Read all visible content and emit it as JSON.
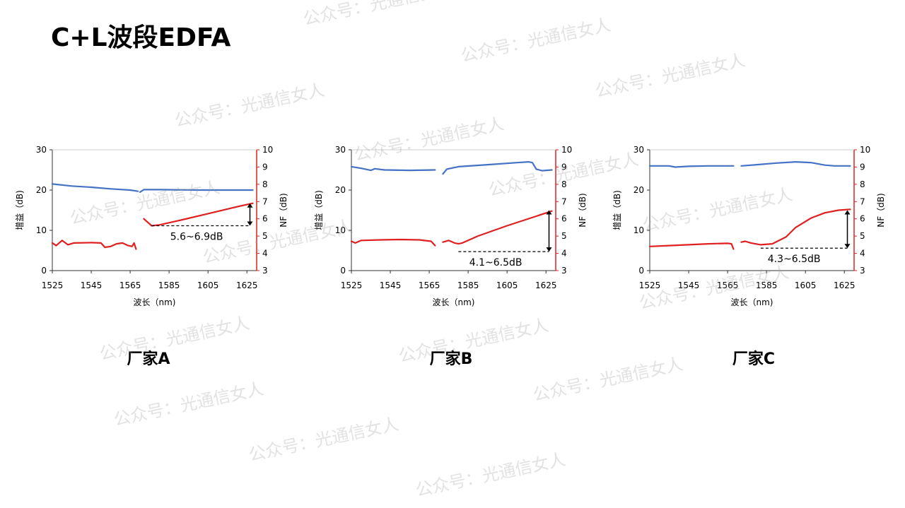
{
  "page_title": "C+L波段EDFA",
  "watermark_text": "公众号：光通信女人",
  "chart_data": [
    {
      "type": "line",
      "caption": "厂家A",
      "xlabel": "波长（nm)",
      "ylabel_left": "增益（dB)",
      "ylabel_right": "NF（dB)",
      "xlim": [
        1525,
        1630
      ],
      "ylim_left": [
        0,
        30
      ],
      "ylim_right": [
        3,
        10
      ],
      "x_ticks": [
        "1525",
        "1545",
        "1565",
        "1585",
        "1605",
        "1625"
      ],
      "y_left_ticks": [
        "0",
        "10",
        "20",
        "30"
      ],
      "y_right_ticks": [
        "3",
        "4",
        "5",
        "6",
        "7",
        "8",
        "9",
        "10"
      ],
      "annotation": "5.6~6.9dB",
      "annotation_range": [
        5.6,
        6.9
      ],
      "series": [
        {
          "axis": "left",
          "color": "#4472C4",
          "segment": "C",
          "points": [
            [
              1525,
              21.5
            ],
            [
              1535,
              21.0
            ],
            [
              1545,
              20.7
            ],
            [
              1555,
              20.3
            ],
            [
              1565,
              20.0
            ],
            [
              1569,
              19.7
            ]
          ]
        },
        {
          "axis": "left",
          "color": "#4472C4",
          "segment": "L",
          "points": [
            [
              1570,
              19.5
            ],
            [
              1572,
              20.1
            ],
            [
              1580,
              20.1
            ],
            [
              1600,
              20.0
            ],
            [
              1628,
              20.0
            ]
          ]
        },
        {
          "axis": "right",
          "color": "#E02020",
          "segment": "C",
          "points": [
            [
              1525,
              4.6
            ],
            [
              1527,
              4.45
            ],
            [
              1530,
              4.75
            ],
            [
              1533,
              4.5
            ],
            [
              1536,
              4.6
            ],
            [
              1545,
              4.62
            ],
            [
              1550,
              4.6
            ],
            [
              1552,
              4.35
            ],
            [
              1555,
              4.4
            ],
            [
              1558,
              4.55
            ],
            [
              1561,
              4.6
            ],
            [
              1564,
              4.45
            ],
            [
              1566,
              4.4
            ],
            [
              1567,
              4.6
            ],
            [
              1568,
              4.25
            ]
          ]
        },
        {
          "axis": "right",
          "color": "#E02020",
          "segment": "L",
          "points": [
            [
              1572,
              6.0
            ],
            [
              1574,
              5.8
            ],
            [
              1576,
              5.6
            ],
            [
              1580,
              5.65
            ],
            [
              1590,
              5.9
            ],
            [
              1605,
              6.3
            ],
            [
              1620,
              6.7
            ],
            [
              1628,
              6.9
            ]
          ]
        }
      ]
    },
    {
      "type": "line",
      "caption": "厂家B",
      "xlabel": "波长（nm)",
      "ylabel_left": "增益（dB)",
      "ylabel_right": "NF（dB)",
      "xlim": [
        1525,
        1630
      ],
      "ylim_left": [
        0,
        30
      ],
      "ylim_right": [
        3,
        10
      ],
      "x_ticks": [
        "1525",
        "1545",
        "1565",
        "1585",
        "1605",
        "1625"
      ],
      "y_left_ticks": [
        "0",
        "10",
        "20",
        "30"
      ],
      "y_right_ticks": [
        "3",
        "4",
        "5",
        "6",
        "7",
        "8",
        "9",
        "10"
      ],
      "annotation": "4.1~6.5dB",
      "annotation_range": [
        4.1,
        6.5
      ],
      "series": [
        {
          "axis": "left",
          "color": "#4472C4",
          "segment": "C",
          "points": [
            [
              1525,
              25.8
            ],
            [
              1530,
              25.4
            ],
            [
              1535,
              24.9
            ],
            [
              1537,
              25.3
            ],
            [
              1542,
              25.0
            ],
            [
              1555,
              24.9
            ],
            [
              1568,
              25.0
            ]
          ]
        },
        {
          "axis": "left",
          "color": "#4472C4",
          "segment": "L",
          "points": [
            [
              1572,
              24.0
            ],
            [
              1574,
              25.2
            ],
            [
              1580,
              25.8
            ],
            [
              1595,
              26.3
            ],
            [
              1610,
              26.8
            ],
            [
              1616,
              27.0
            ],
            [
              1618,
              26.8
            ],
            [
              1620,
              25.2
            ],
            [
              1623,
              24.8
            ],
            [
              1628,
              25.0
            ]
          ]
        },
        {
          "axis": "right",
          "color": "#E02020",
          "segment": "C",
          "points": [
            [
              1525,
              4.7
            ],
            [
              1527,
              4.6
            ],
            [
              1530,
              4.75
            ],
            [
              1540,
              4.78
            ],
            [
              1550,
              4.8
            ],
            [
              1560,
              4.78
            ],
            [
              1566,
              4.7
            ],
            [
              1568,
              4.45
            ]
          ]
        },
        {
          "axis": "right",
          "color": "#E02020",
          "segment": "L",
          "points": [
            [
              1572,
              4.65
            ],
            [
              1575,
              4.75
            ],
            [
              1578,
              4.6
            ],
            [
              1580,
              4.55
            ],
            [
              1582,
              4.6
            ],
            [
              1590,
              5.0
            ],
            [
              1605,
              5.6
            ],
            [
              1620,
              6.15
            ],
            [
              1628,
              6.45
            ]
          ]
        }
      ]
    },
    {
      "type": "line",
      "caption": "厂家C",
      "xlabel": "波长（nm)",
      "ylabel_left": "增益（dB)",
      "ylabel_right": "NF（dB)",
      "xlim": [
        1525,
        1630
      ],
      "ylim_left": [
        0,
        30
      ],
      "ylim_right": [
        3,
        10
      ],
      "x_ticks": [
        "1525",
        "1545",
        "1565",
        "1585",
        "1605",
        "1625"
      ],
      "y_left_ticks": [
        "0",
        "10",
        "20",
        "30"
      ],
      "y_right_ticks": [
        "3",
        "4",
        "5",
        "6",
        "7",
        "8",
        "9",
        "10"
      ],
      "annotation": "4.3~6.5dB",
      "annotation_range": [
        4.3,
        6.5
      ],
      "series": [
        {
          "axis": "left",
          "color": "#4472C4",
          "segment": "C",
          "points": [
            [
              1525,
              26.0
            ],
            [
              1535,
              26.0
            ],
            [
              1538,
              25.7
            ],
            [
              1545,
              25.9
            ],
            [
              1555,
              26.0
            ],
            [
              1568,
              26.0
            ]
          ]
        },
        {
          "axis": "left",
          "color": "#4472C4",
          "segment": "L",
          "points": [
            [
              1572,
              26.0
            ],
            [
              1580,
              26.3
            ],
            [
              1590,
              26.7
            ],
            [
              1600,
              27.0
            ],
            [
              1608,
              26.8
            ],
            [
              1615,
              26.2
            ],
            [
              1620,
              26.0
            ],
            [
              1628,
              26.0
            ]
          ]
        },
        {
          "axis": "right",
          "color": "#E02020",
          "segment": "C",
          "points": [
            [
              1525,
              4.4
            ],
            [
              1535,
              4.45
            ],
            [
              1545,
              4.5
            ],
            [
              1555,
              4.55
            ],
            [
              1565,
              4.58
            ],
            [
              1567,
              4.55
            ],
            [
              1568,
              4.25
            ]
          ]
        },
        {
          "axis": "right",
          "color": "#E02020",
          "segment": "L",
          "points": [
            [
              1572,
              4.65
            ],
            [
              1574,
              4.7
            ],
            [
              1577,
              4.6
            ],
            [
              1582,
              4.5
            ],
            [
              1588,
              4.55
            ],
            [
              1595,
              4.95
            ],
            [
              1600,
              5.5
            ],
            [
              1608,
              6.05
            ],
            [
              1615,
              6.35
            ],
            [
              1622,
              6.5
            ],
            [
              1628,
              6.55
            ]
          ]
        }
      ]
    }
  ]
}
